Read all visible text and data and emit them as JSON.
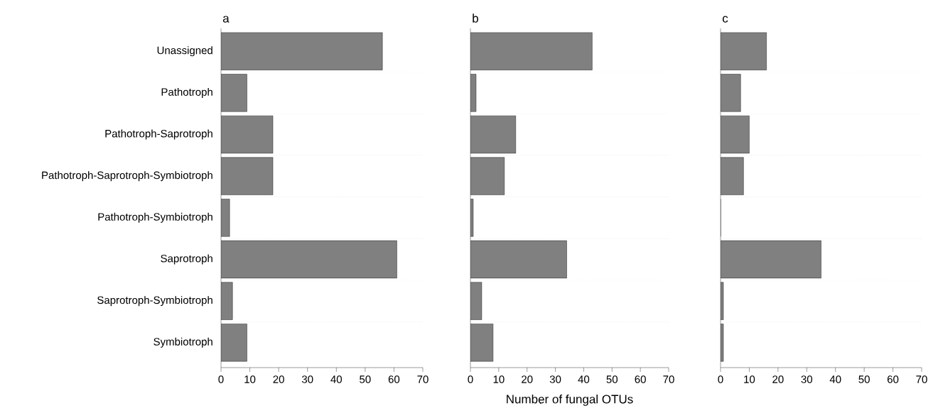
{
  "chart_data": [
    {
      "type": "bar",
      "title": "a",
      "orientation": "horizontal",
      "categories": [
        "Unassigned",
        "Pathotroph",
        "Pathotroph-Saprotroph",
        "Pathotroph-Saprotroph-Symbiotroph",
        "Pathotroph-Symbiotroph",
        "Saprotroph",
        "Saprotroph-Symbiotroph",
        "Symbiotroph"
      ],
      "values": [
        56,
        9,
        18,
        18,
        3,
        61,
        4,
        9
      ],
      "color": "#808080",
      "xlim": [
        0,
        70
      ],
      "xticks": [
        0,
        10,
        20,
        30,
        40,
        50,
        60,
        70
      ],
      "grid": "y"
    },
    {
      "type": "bar",
      "title": "b",
      "xlabel": "Number of fungal OTUs",
      "orientation": "horizontal",
      "categories": [
        null,
        null,
        null,
        null,
        null,
        null,
        null,
        null
      ],
      "values": [
        43,
        2,
        16,
        12,
        1,
        34,
        4,
        8
      ],
      "color": "#808080",
      "xlim": [
        0,
        70
      ],
      "xticks": [
        0,
        10,
        20,
        30,
        40,
        50,
        60,
        70
      ],
      "grid": "y",
      "tick_labels": "x"
    },
    {
      "type": "bar",
      "title": "c",
      "orientation": "horizontal",
      "categories": [
        null,
        null,
        null,
        null,
        null,
        null,
        null,
        null
      ],
      "values": [
        16,
        7,
        10,
        8,
        0,
        35,
        1,
        1
      ],
      "color": "#808080",
      "xlim": [
        0,
        70
      ],
      "xticks": [
        0,
        10,
        20,
        30,
        40,
        50,
        60,
        70
      ],
      "grid": "y",
      "tick_labels": "x"
    }
  ]
}
